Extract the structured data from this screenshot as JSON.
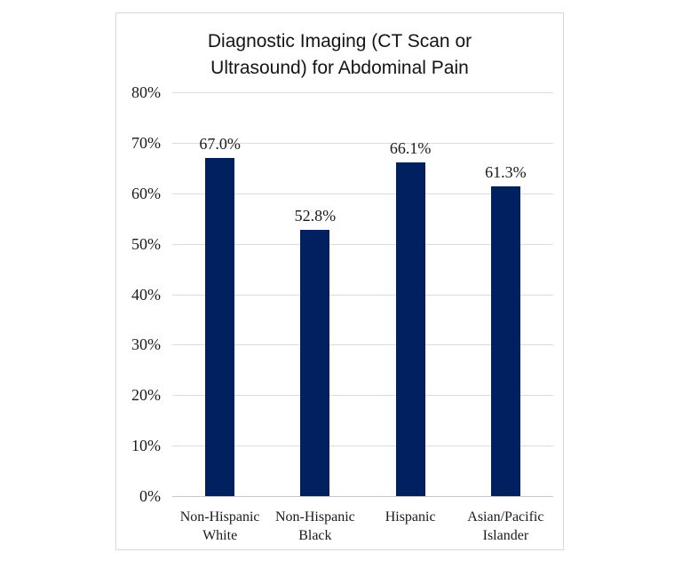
{
  "page": {
    "background_color": "#ffffff"
  },
  "card": {
    "background_color": "#ffffff",
    "border_color": "#d8d8d8"
  },
  "chart_data": {
    "type": "bar",
    "title": "Diagnostic Imaging (CT Scan or Ultrasound) for Abdominal Pain",
    "title_lines": [
      "Diagnostic Imaging (CT Scan or",
      "Ultrasound) for Abdominal Pain"
    ],
    "categories": [
      "Non-Hispanic White",
      "Non-Hispanic Black",
      "Hispanic",
      "Asian/Pacific Islander"
    ],
    "values": [
      67.0,
      52.8,
      66.1,
      61.3
    ],
    "data_labels": [
      "67.0%",
      "52.8%",
      "66.1%",
      "61.3%"
    ],
    "xlabel": "",
    "ylabel": "",
    "ylim": [
      0,
      80
    ],
    "ytick_step": 10,
    "ytick_labels": [
      "0%",
      "10%",
      "20%",
      "30%",
      "40%",
      "50%",
      "60%",
      "70%",
      "80%"
    ],
    "grid": "horizontal",
    "legend": "none",
    "bar_color": "#002060",
    "gridline_color": "#dcdcdc",
    "axis_line_color": "#c9c9c9",
    "text_color": "#1a1a1a",
    "title_color": "#141414"
  }
}
